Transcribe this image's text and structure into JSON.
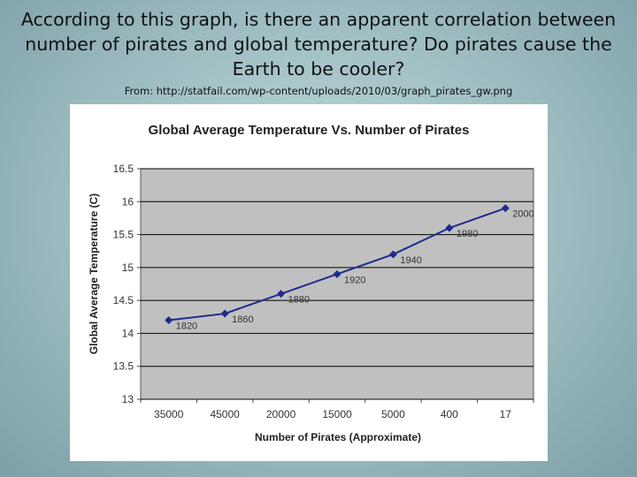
{
  "slide": {
    "title": "According to this graph, is there an apparent correlation between number of pirates and global temperature?  Do pirates cause the Earth to be cooler?",
    "source": "From: http://statfail.com/wp-content/uploads/2010/03/graph_pirates_gw.png"
  },
  "colors": {
    "series": "#1f2a8c",
    "plot_bg": "#c0c0c0",
    "grid": "#000000"
  },
  "chart_data": {
    "type": "line",
    "title": "Global Average Temperature Vs. Number of Pirates",
    "xlabel": "Number of Pirates (Approximate)",
    "ylabel": "Global Average Temperature (C)",
    "categories": [
      "35000",
      "45000",
      "20000",
      "15000",
      "5000",
      "400",
      "17"
    ],
    "series": [
      {
        "name": "Temperature",
        "values": [
          14.2,
          14.3,
          14.6,
          14.9,
          15.2,
          15.6,
          15.9
        ],
        "point_labels": [
          "1820",
          "1860",
          "1880",
          "1920",
          "1940",
          "1980",
          "2000"
        ]
      }
    ],
    "ylim": [
      13,
      16.5
    ],
    "yticks": [
      13,
      13.5,
      14,
      14.5,
      15,
      15.5,
      16,
      16.5
    ],
    "ytick_labels": [
      "13",
      "13.5",
      "14",
      "14.5",
      "15",
      "15.5",
      "16",
      "16.5"
    ],
    "grid": true,
    "legend": "none"
  }
}
